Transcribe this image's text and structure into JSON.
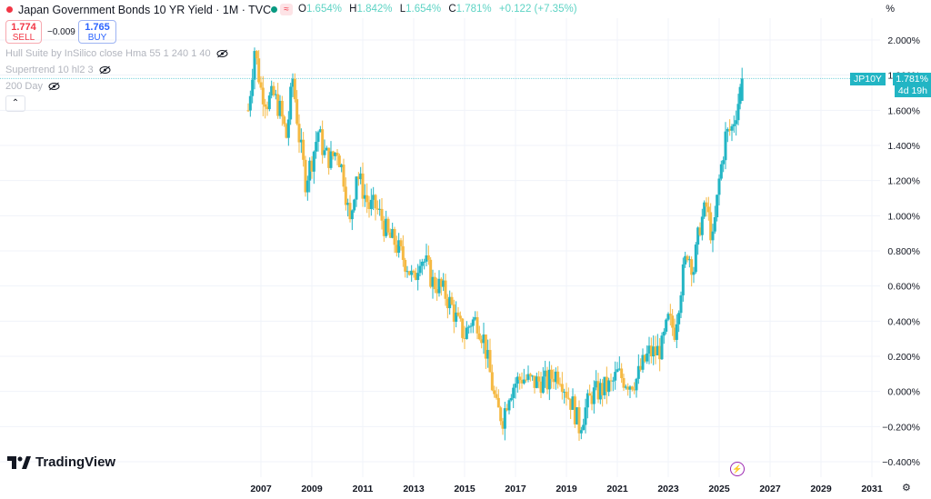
{
  "header": {
    "title": "Japan Government Bonds 10 YR Yield · 1M · TVC",
    "approx_symbol": "≈",
    "ohlc": {
      "open_label": "O",
      "open": "1.654%",
      "high_label": "H",
      "high": "1.842%",
      "low_label": "L",
      "low": "1.654%",
      "close_label": "C",
      "close": "1.781%",
      "change": "+0.122 (+7.35%)"
    },
    "scale_mode": "%"
  },
  "trade": {
    "sell_price": "1.774",
    "sell_label": "SELL",
    "spread": "−0.009",
    "buy_price": "1.765",
    "buy_label": "BUY"
  },
  "indicators": [
    {
      "label": "Hull Suite by InSilico close Hma 55 1 240 1 40"
    },
    {
      "label": "Supertrend 10 hl2 3"
    },
    {
      "label": "200 Day"
    }
  ],
  "collapse_icon": "chevron-up-icon",
  "price_marker": {
    "symbol": "JP10Y",
    "price": "1.781%",
    "countdown": "4d 19h"
  },
  "brand": {
    "name": "TradingView"
  },
  "colors": {
    "up": "#22b5c4",
    "down": "#f5b942",
    "last_line": "#22b5c4"
  },
  "chart_data": {
    "type": "candlestick",
    "title": "Japan Government Bonds 10 YR Yield",
    "interval": "1M",
    "source": "TVC",
    "ylim": [
      -0.4,
      2.1
    ],
    "y_ticks": [
      "2.000%",
      "1.800%",
      "1.600%",
      "1.400%",
      "1.200%",
      "1.000%",
      "0.800%",
      "0.600%",
      "0.400%",
      "0.200%",
      "0.000%",
      "−0.200%",
      "−0.400%"
    ],
    "x_ticks": [
      "2007",
      "2009",
      "2011",
      "2013",
      "2015",
      "2017",
      "2019",
      "2021",
      "2023",
      "2025",
      "2027",
      "2029",
      "2031"
    ],
    "xlim": [
      2006,
      2031.5
    ],
    "series": [
      {
        "name": "JP10Y",
        "x": [
          2006.5,
          2006.75,
          2007.0,
          2007.25,
          2007.5,
          2007.75,
          2008.0,
          2008.25,
          2008.5,
          2008.75,
          2009.0,
          2009.25,
          2009.5,
          2009.75,
          2010.0,
          2010.25,
          2010.5,
          2010.75,
          2011.0,
          2011.25,
          2011.5,
          2011.75,
          2012.0,
          2012.25,
          2012.5,
          2012.75,
          2013.0,
          2013.25,
          2013.5,
          2013.75,
          2014.0,
          2014.25,
          2014.5,
          2014.75,
          2015.0,
          2015.25,
          2015.5,
          2015.75,
          2016.0,
          2016.25,
          2016.5,
          2016.75,
          2017.0,
          2017.25,
          2017.5,
          2017.75,
          2018.0,
          2018.25,
          2018.5,
          2018.75,
          2019.0,
          2019.25,
          2019.5,
          2019.75,
          2020.0,
          2020.25,
          2020.5,
          2020.75,
          2021.0,
          2021.25,
          2021.5,
          2021.75,
          2022.0,
          2022.25,
          2022.5,
          2022.75,
          2023.0,
          2023.25,
          2023.5,
          2023.75,
          2024.0,
          2024.25,
          2024.5,
          2024.75,
          2025.0,
          2025.25,
          2025.5,
          2025.75,
          2025.9
        ],
        "close": [
          1.6,
          1.95,
          1.72,
          1.65,
          1.68,
          1.6,
          1.45,
          1.78,
          1.45,
          1.2,
          1.32,
          1.48,
          1.35,
          1.32,
          1.38,
          1.22,
          0.95,
          1.25,
          1.15,
          1.05,
          1.05,
          0.98,
          0.88,
          0.85,
          0.78,
          0.72,
          0.62,
          0.78,
          0.72,
          0.62,
          0.6,
          0.55,
          0.48,
          0.38,
          0.32,
          0.4,
          0.4,
          0.3,
          0.1,
          -0.1,
          -0.15,
          0.0,
          0.05,
          0.08,
          0.06,
          0.05,
          0.06,
          0.05,
          0.1,
          0.1,
          0.0,
          -0.08,
          -0.2,
          -0.1,
          -0.02,
          0.0,
          0.02,
          0.03,
          0.1,
          0.07,
          0.05,
          0.07,
          0.15,
          0.22,
          0.22,
          0.25,
          0.4,
          0.35,
          0.6,
          0.8,
          0.7,
          0.95,
          1.05,
          0.85,
          1.2,
          1.45,
          1.5,
          1.65,
          1.781
        ]
      }
    ]
  }
}
